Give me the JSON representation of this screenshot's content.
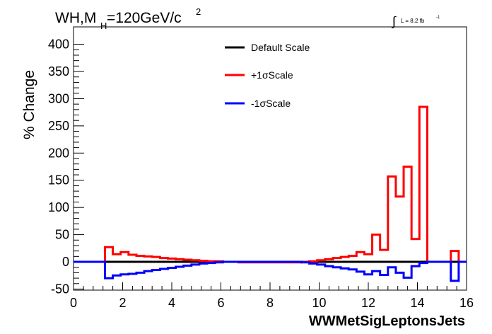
{
  "chart_data": {
    "type": "line",
    "title": "WH,M",
    "title_sub": "H",
    "title_rest": "=120GeV/c",
    "title_sup": "2",
    "lumi_label": "L = 8.2 fb",
    "lumi_sup": "-1",
    "xlabel": "WWMetSigLeptonsJets",
    "ylabel": "% Change",
    "xlim": [
      0,
      16
    ],
    "ylim": [
      -52,
      432
    ],
    "xticks": [
      0,
      2,
      4,
      6,
      8,
      10,
      12,
      14,
      16
    ],
    "yticks": [
      -50,
      0,
      50,
      100,
      150,
      200,
      250,
      300,
      350,
      400
    ],
    "grid": false,
    "legend_position": "top-center",
    "bin_edges": [
      0.0,
      0.32,
      0.64,
      0.96,
      1.28,
      1.6,
      1.92,
      2.24,
      2.56,
      2.88,
      3.2,
      3.52,
      3.84,
      4.16,
      4.48,
      4.8,
      5.12,
      5.44,
      5.76,
      6.08,
      6.4,
      6.72,
      7.04,
      7.36,
      7.68,
      8.0,
      8.32,
      8.64,
      8.96,
      9.28,
      9.6,
      9.92,
      10.24,
      10.56,
      10.88,
      11.2,
      11.52,
      11.84,
      12.16,
      12.48,
      12.8,
      13.12,
      13.44,
      13.76,
      14.08,
      14.4,
      14.72,
      15.04,
      15.36,
      15.68,
      16.0
    ],
    "series": [
      {
        "name": "Default Scale",
        "color": "#000000",
        "values": [
          0,
          0,
          0,
          0,
          0,
          0,
          0,
          0,
          0,
          0,
          0,
          0,
          0,
          0,
          0,
          0,
          0,
          0,
          0,
          0,
          0,
          0,
          0,
          0,
          0,
          0,
          0,
          0,
          0,
          0,
          0,
          0,
          0,
          0,
          0,
          0,
          0,
          0,
          0,
          0,
          0,
          0,
          0,
          0,
          0,
          0,
          0,
          0,
          0,
          0
        ]
      },
      {
        "name": "+1σScale",
        "color": "#ff0000",
        "values": [
          0,
          0,
          0,
          0,
          27,
          14,
          18,
          13,
          11,
          10,
          9,
          7,
          6,
          5,
          4,
          3,
          2,
          1,
          1,
          0,
          0,
          -1,
          -1,
          -1,
          -1,
          -1,
          -1,
          -1,
          -1,
          0,
          1,
          3,
          5,
          7,
          9,
          11,
          18,
          14,
          50,
          22,
          157,
          120,
          175,
          42,
          285,
          0,
          0,
          0,
          20,
          0
        ]
      },
      {
        "name": "-1σScale",
        "color": "#0000ff",
        "values": [
          0,
          0,
          0,
          0,
          -30,
          -25,
          -23,
          -22,
          -20,
          -17,
          -15,
          -13,
          -11,
          -9,
          -7,
          -5,
          -3,
          -2,
          -1,
          0,
          0,
          0,
          0,
          0,
          0,
          0,
          0,
          0,
          0,
          -1,
          -3,
          -5,
          -8,
          -10,
          -12,
          -14,
          -18,
          -23,
          -17,
          -24,
          -10,
          -20,
          -29,
          -8,
          -2,
          0,
          0,
          0,
          -35,
          0
        ]
      }
    ]
  }
}
